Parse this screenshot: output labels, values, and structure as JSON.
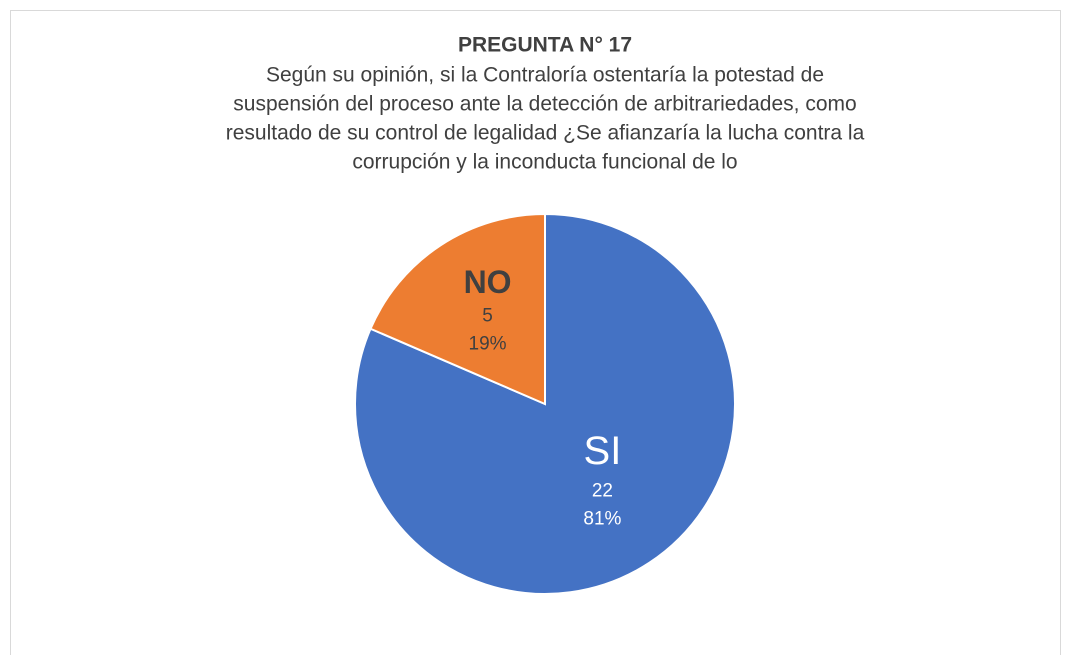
{
  "chart_data": {
    "type": "pie",
    "title": "PREGUNTA N° 17",
    "subtitle": [
      "Según su opinión, si la Contraloría ostentaría la potestad de",
      "suspensión del proceso ante la detección de arbitrariedades, como",
      "resultado de su control de legalidad ¿Se afianzaría la lucha contra la",
      "corrupción y la inconducta funcional de lo"
    ],
    "categories": [
      "SI",
      "NO"
    ],
    "values": [
      22,
      5
    ],
    "percent_labels": [
      "81%",
      "19%"
    ],
    "colors": [
      "#4472c4",
      "#ed7d31"
    ]
  }
}
